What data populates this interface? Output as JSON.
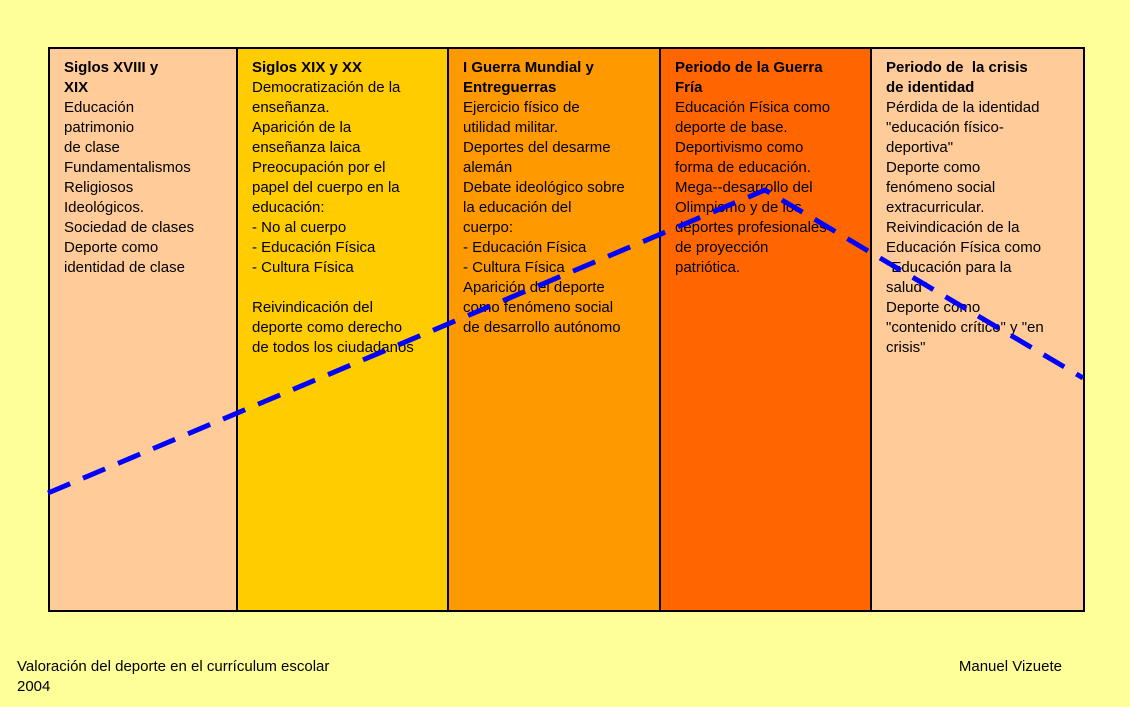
{
  "columns": [
    {
      "title": [
        "Siglos XVIII y",
        "XIX"
      ],
      "paragraphs": [
        [
          "Educación",
          "patrimonio",
          "de clase",
          "Fundamentalismos",
          "Religiosos",
          "Ideológicos.",
          "Sociedad de clases",
          "Deporte como",
          "identidad de clase"
        ]
      ]
    },
    {
      "title": [
        "Siglos XIX y XX"
      ],
      "paragraphs": [
        [
          "Democratización de la",
          "enseñanza.",
          "Aparición de la",
          "enseñanza laica",
          "Preocupación por el",
          "papel del cuerpo en la",
          "educación:",
          "- No al cuerpo",
          "- Educación Física",
          "- Cultura Física"
        ],
        [
          "Reivindicación del",
          "deporte como derecho",
          "de todos los ciudadanos"
        ]
      ]
    },
    {
      "title": [
        "I Guerra Mundial y",
        "Entreguerras"
      ],
      "paragraphs": [
        [
          "Ejercicio físico de",
          "utilidad militar.",
          "Deportes del desarme",
          "alemán",
          "Debate ideológico sobre",
          "la educación del",
          "cuerpo:",
          "- Educación Física",
          "- Cultura Física",
          "Aparición del deporte",
          "como fenómeno social",
          "de desarrollo autónomo"
        ]
      ]
    },
    {
      "title": [
        "Periodo de la Guerra",
        "Fría"
      ],
      "paragraphs": [
        [
          "Educación Física como",
          "deporte de base.",
          "Deportivismo como",
          "forma de educación.",
          "Mega--desarrollo del",
          "Olimpismo y de los",
          "deportes profesionales",
          "de proyección",
          "patriótica."
        ]
      ]
    },
    {
      "title": [
        "Periodo de  la crisis",
        "de identidad"
      ],
      "paragraphs": [
        [
          "Pérdida de la identidad",
          "\"educación físico-",
          "deportiva\"",
          "Deporte como",
          "fenómeno social",
          "extracurricular.",
          "Reivindicación de la",
          "Educación Física como",
          "\"Educación para la",
          "salud\"",
          "Deporte como",
          "\"contenido crítico\" y \"en",
          "crisis\""
        ]
      ]
    }
  ],
  "footer": {
    "title": "Valoración del deporte en el currículum escolar",
    "year": "2004",
    "author": "Manuel Vizuete"
  }
}
